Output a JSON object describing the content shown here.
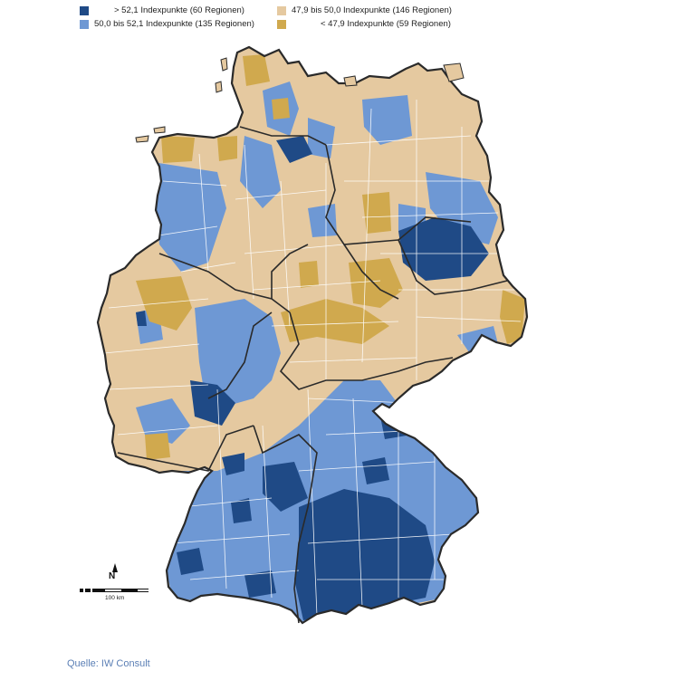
{
  "legend": {
    "items": [
      {
        "label": "> 52,1 Indexpunkte (60 Regionen)",
        "color": "#1f4a86"
      },
      {
        "label": "50,0 bis 52,1 Indexpunkte (135 Regionen)",
        "color": "#6e98d4"
      },
      {
        "label": "47,9 bis 50,0 Indexpunkte (146 Regionen)",
        "color": "#e5c9a0"
      },
      {
        "label": "< 47,9 Indexpunkte (59 Regionen)",
        "color": "#d0a94e"
      }
    ]
  },
  "map": {
    "region_colors": {
      "high": "#1f4a86",
      "mid_high": "#6e98d4",
      "mid_low": "#e5c9a0",
      "low": "#d0a94e"
    }
  },
  "scale": {
    "north_label": "N",
    "distance_label": "100 km"
  },
  "source": {
    "text": "Quelle: IW Consult"
  }
}
